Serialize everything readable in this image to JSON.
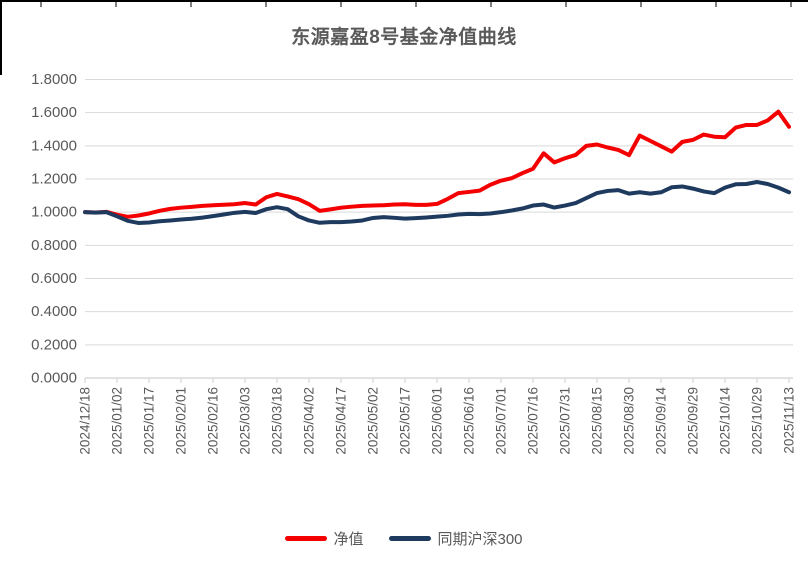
{
  "chart_data": {
    "type": "line",
    "title": "东源嘉盈8号基金净值曲线",
    "xlabel": "",
    "ylabel": "",
    "ylim": [
      0,
      1.8
    ],
    "y_tick_step": 0.2,
    "y_tick_labels": [
      "0.0000",
      "0.2000",
      "0.4000",
      "0.6000",
      "0.8000",
      "1.0000",
      "1.2000",
      "1.4000",
      "1.6000",
      "1.8000"
    ],
    "x_tick_labels": [
      "2024/12/18",
      "2025/01/02",
      "2025/01/17",
      "2025/02/01",
      "2025/02/16",
      "2025/03/03",
      "2025/03/18",
      "2025/04/02",
      "2025/04/17",
      "2025/05/02",
      "2025/05/17",
      "2025/06/01",
      "2025/06/16",
      "2025/07/01",
      "2025/07/16",
      "2025/07/31",
      "2025/08/15",
      "2025/08/30",
      "2025/09/14",
      "2025/09/29",
      "2025/10/14",
      "2025/10/29",
      "2025/11/13"
    ],
    "points_per_label": 3,
    "grid": "horizontal",
    "legend_position": "bottom",
    "series": [
      {
        "name": "净值",
        "color": "#f40000",
        "values": [
          1.0,
          0.998,
          1.002,
          0.985,
          0.972,
          0.98,
          0.992,
          1.008,
          1.02,
          1.027,
          1.032,
          1.038,
          1.042,
          1.045,
          1.048,
          1.055,
          1.046,
          1.09,
          1.11,
          1.095,
          1.078,
          1.048,
          1.008,
          1.017,
          1.027,
          1.033,
          1.038,
          1.04,
          1.042,
          1.046,
          1.048,
          1.044,
          1.044,
          1.05,
          1.08,
          1.115,
          1.122,
          1.13,
          1.165,
          1.19,
          1.205,
          1.235,
          1.262,
          1.355,
          1.3,
          1.325,
          1.345,
          1.4,
          1.408,
          1.39,
          1.375,
          1.344,
          1.462,
          1.43,
          1.398,
          1.365,
          1.424,
          1.436,
          1.468,
          1.455,
          1.452,
          1.51,
          1.526,
          1.526,
          1.553,
          1.606,
          1.515
        ]
      },
      {
        "name": "同期沪深300",
        "color": "#1f3a5f",
        "values": [
          1.0,
          0.997,
          1.0,
          0.975,
          0.948,
          0.935,
          0.938,
          0.945,
          0.95,
          0.956,
          0.96,
          0.967,
          0.976,
          0.986,
          0.996,
          1.002,
          0.995,
          1.018,
          1.03,
          1.018,
          0.975,
          0.95,
          0.936,
          0.94,
          0.94,
          0.944,
          0.95,
          0.965,
          0.97,
          0.966,
          0.961,
          0.964,
          0.968,
          0.973,
          0.978,
          0.986,
          0.99,
          0.988,
          0.992,
          1.0,
          1.01,
          1.022,
          1.04,
          1.046,
          1.028,
          1.04,
          1.055,
          1.085,
          1.115,
          1.128,
          1.133,
          1.112,
          1.12,
          1.112,
          1.12,
          1.15,
          1.155,
          1.142,
          1.125,
          1.115,
          1.148,
          1.168,
          1.17,
          1.182,
          1.17,
          1.148,
          1.12
        ]
      }
    ]
  },
  "colors": {
    "title": "#595959",
    "axis_text": "#595959",
    "gridline": "#d9d9d9",
    "axis_line": "#d9d9d9",
    "spreadsheet_border": "#000000",
    "column_tick": "#808080"
  }
}
